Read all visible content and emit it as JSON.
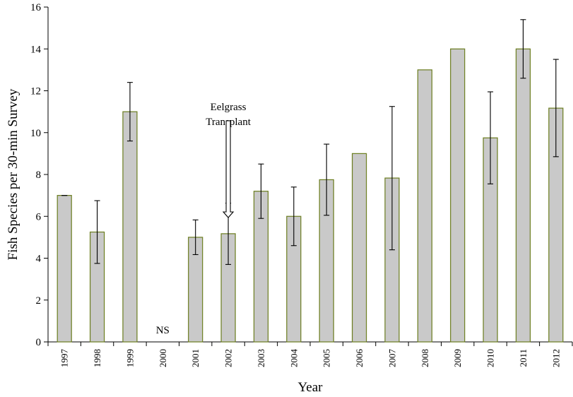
{
  "chart_data": {
    "type": "bar",
    "xlabel": "Year",
    "ylabel": "Fish Species per 30-min Survey",
    "ylim": [
      0,
      16
    ],
    "yticks": [
      0,
      2,
      4,
      6,
      8,
      10,
      12,
      14,
      16
    ],
    "categories": [
      "1997",
      "1998",
      "1999",
      "2000",
      "2001",
      "2002",
      "2003",
      "2004",
      "2005",
      "2006",
      "2007",
      "2008",
      "2009",
      "2010",
      "2011",
      "2012"
    ],
    "values": [
      7.0,
      5.25,
      11.0,
      null,
      5.0,
      5.17,
      7.2,
      6.0,
      7.75,
      9.0,
      7.83,
      13.0,
      14.0,
      9.75,
      14.0,
      11.17
    ],
    "error_low": [
      7.0,
      3.75,
      9.6,
      null,
      4.17,
      3.7,
      5.9,
      4.6,
      6.05,
      null,
      4.4,
      null,
      null,
      7.55,
      12.6,
      8.85
    ],
    "error_high": [
      7.0,
      6.75,
      12.4,
      null,
      5.83,
      6.63,
      8.5,
      7.4,
      9.45,
      null,
      11.25,
      null,
      null,
      11.95,
      15.4,
      13.5
    ],
    "missing_label": "NS",
    "missing_category": "2000",
    "annotation": {
      "line1": "Eelgrass",
      "line2": "Transplant",
      "category": "2002"
    }
  }
}
